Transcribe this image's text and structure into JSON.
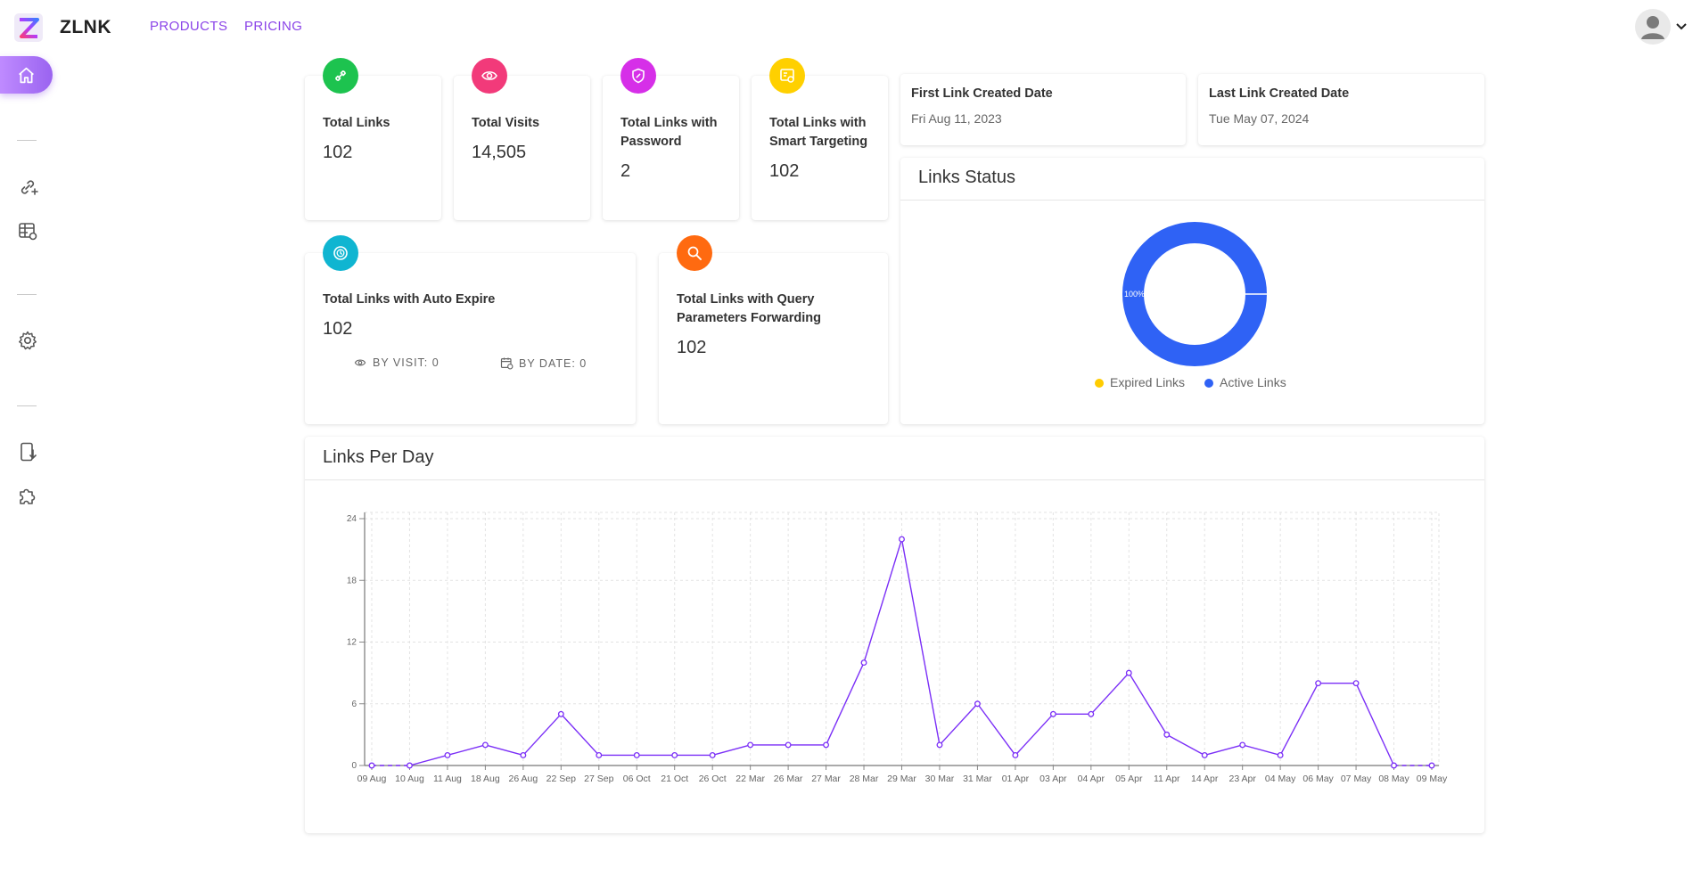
{
  "header": {
    "brand": "ZLNK",
    "nav": [
      "PRODUCTS",
      "PRICING"
    ]
  },
  "sidebar": {
    "icons": [
      "home-icon",
      "add-link-icon",
      "table-link-icon",
      "gear-icon",
      "phone-download-icon",
      "puzzle-icon"
    ]
  },
  "colors": {
    "accent": "#8b44e8",
    "green": "#1dc34f",
    "pink": "#f23a7a",
    "magenta": "#d62fe8",
    "yellow": "#ffd000",
    "cyan": "#0fb5d1",
    "orange": "#ff6a10",
    "active_blue": "#2f62f5",
    "expired_yellow": "#ffcc00",
    "line_purple": "#7b2ff7"
  },
  "stats": {
    "total_links": {
      "label": "Total Links",
      "value": "102",
      "icon": "link-icon"
    },
    "total_visits": {
      "label": "Total Visits",
      "value": "14,505",
      "icon": "eye-icon"
    },
    "password_links": {
      "label": "Total Links with Password",
      "value": "2",
      "icon": "shield-link-icon"
    },
    "smart_targeting": {
      "label": "Total Links with Smart Targeting",
      "value": "102",
      "icon": "targeting-icon"
    },
    "auto_expire": {
      "label": "Total Links with Auto Expire",
      "value": "102",
      "icon": "timer-icon",
      "by_visit": "BY VISIT: 0",
      "by_date": "BY DATE: 0"
    },
    "query_forwarding": {
      "label": "Total Links with Query Parameters Forwarding",
      "value": "102",
      "icon": "search-icon"
    }
  },
  "dates": {
    "first": {
      "title": "First Link Created Date",
      "value": "Fri Aug 11, 2023"
    },
    "last": {
      "title": "Last Link Created Date",
      "value": "Tue May 07, 2024"
    }
  },
  "links_status": {
    "title": "Links Status",
    "slice_label": "100%",
    "legend": [
      "Expired Links",
      "Active Links"
    ]
  },
  "links_per_day": {
    "title": "Links Per Day"
  },
  "chart_data": [
    {
      "type": "pie",
      "title": "Links Status",
      "labels": [
        "Expired Links",
        "Active Links"
      ],
      "values": [
        0,
        102
      ],
      "slice_labels": [
        "",
        "100%"
      ],
      "colors": [
        "#ffcc00",
        "#2f62f5"
      ],
      "legend": "bottom"
    },
    {
      "type": "line",
      "title": "Links Per Day",
      "categories": [
        "09 Aug",
        "10 Aug",
        "11 Aug",
        "18 Aug",
        "26 Aug",
        "22 Sep",
        "27 Sep",
        "06 Oct",
        "21 Oct",
        "26 Oct",
        "22 Mar",
        "26 Mar",
        "27 Mar",
        "28 Mar",
        "29 Mar",
        "30 Mar",
        "31 Mar",
        "01 Apr",
        "03 Apr",
        "04 Apr",
        "05 Apr",
        "11 Apr",
        "14 Apr",
        "23 Apr",
        "04 May",
        "06 May",
        "07 May",
        "08 May",
        "09 May"
      ],
      "values": [
        0,
        0,
        1,
        2,
        1,
        5,
        1,
        1,
        1,
        1,
        2,
        2,
        2,
        10,
        22,
        2,
        6,
        1,
        5,
        5,
        9,
        3,
        1,
        2,
        1,
        8,
        8,
        0,
        0
      ],
      "dashed_segments": [
        [
          0,
          1
        ],
        [
          27,
          28
        ]
      ],
      "yticks": [
        0,
        6,
        12,
        18,
        24
      ],
      "ylim": [
        0,
        24
      ],
      "grid": true,
      "color": "#7b2ff7"
    }
  ]
}
